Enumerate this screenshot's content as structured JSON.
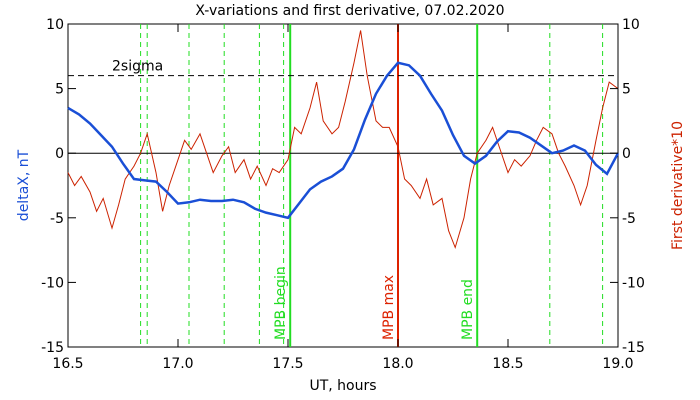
{
  "chart_data": {
    "type": "line",
    "title": "X-variations and first derivative, 07.02.2020",
    "xlabel": "UT, hours",
    "ylabel_left": "deltaX, nT",
    "ylabel_right": "First derivative*10",
    "xlim": [
      16.5,
      19.0
    ],
    "ylim": [
      -15,
      10
    ],
    "x_ticks": [
      16.5,
      17.0,
      17.5,
      18.0,
      18.5,
      19.0
    ],
    "x_tick_labels": [
      "16.5",
      "17.0",
      "17.5",
      "18.0",
      "18.5",
      "19.0"
    ],
    "y_ticks": [
      -15,
      -10,
      -5,
      0,
      5,
      10
    ],
    "y_tick_labels": [
      "-15",
      "-10",
      "-5",
      "0",
      "5",
      "10"
    ],
    "colors": {
      "deltax": "#1a4fd6",
      "derivative": "#cc2200",
      "marker_green": "#22dd22",
      "mpb_max": "#dd2200",
      "sigma": "#000000",
      "left_label": "#1a4fd6",
      "right_label": "#cc2200"
    },
    "sigma_line": {
      "y": 6,
      "label": "2sigma"
    },
    "zero_line": {
      "y": 0
    },
    "minor_markers": [
      16.83,
      16.86,
      17.05,
      17.21,
      17.37,
      17.48,
      18.69,
      18.93
    ],
    "markers": [
      {
        "x": 17.51,
        "label": "MPB begin",
        "kind": "green"
      },
      {
        "x": 18.0,
        "label": "MPB max",
        "kind": "red"
      },
      {
        "x": 18.36,
        "label": "MPB end",
        "kind": "green"
      }
    ],
    "series": [
      {
        "key": "deltax",
        "x": [
          16.5,
          16.55,
          16.6,
          16.65,
          16.7,
          16.75,
          16.8,
          16.85,
          16.9,
          16.95,
          17.0,
          17.05,
          17.1,
          17.15,
          17.2,
          17.25,
          17.3,
          17.35,
          17.4,
          17.45,
          17.5,
          17.55,
          17.6,
          17.65,
          17.7,
          17.75,
          17.8,
          17.85,
          17.9,
          17.95,
          18.0,
          18.05,
          18.1,
          18.15,
          18.2,
          18.25,
          18.3,
          18.35,
          18.4,
          18.45,
          18.5,
          18.55,
          18.6,
          18.65,
          18.7,
          18.75,
          18.8,
          18.85,
          18.9,
          18.95,
          19.0
        ],
        "values": [
          3.5,
          3.0,
          2.3,
          1.4,
          0.5,
          -0.8,
          -2.0,
          -2.1,
          -2.2,
          -3.0,
          -3.9,
          -3.8,
          -3.6,
          -3.7,
          -3.7,
          -3.6,
          -3.8,
          -4.3,
          -4.6,
          -4.8,
          -5.0,
          -3.9,
          -2.8,
          -2.2,
          -1.8,
          -1.2,
          0.3,
          2.6,
          4.6,
          6.0,
          7.0,
          6.8,
          6.0,
          4.6,
          3.3,
          1.4,
          -0.2,
          -0.8,
          -0.2,
          0.9,
          1.7,
          1.6,
          1.2,
          0.6,
          0.0,
          0.2,
          0.6,
          0.2,
          -0.9,
          -1.6,
          0.0
        ]
      },
      {
        "key": "derivative",
        "x": [
          16.5,
          16.53,
          16.56,
          16.6,
          16.63,
          16.66,
          16.7,
          16.73,
          16.76,
          16.8,
          16.83,
          16.86,
          16.9,
          16.93,
          16.96,
          17.0,
          17.03,
          17.06,
          17.1,
          17.13,
          17.16,
          17.2,
          17.23,
          17.26,
          17.3,
          17.33,
          17.36,
          17.4,
          17.43,
          17.46,
          17.5,
          17.53,
          17.56,
          17.6,
          17.63,
          17.66,
          17.7,
          17.73,
          17.76,
          17.8,
          17.83,
          17.86,
          17.9,
          17.93,
          17.96,
          18.0,
          18.03,
          18.06,
          18.1,
          18.13,
          18.16,
          18.2,
          18.23,
          18.26,
          18.3,
          18.33,
          18.36,
          18.4,
          18.43,
          18.46,
          18.5,
          18.53,
          18.56,
          18.6,
          18.63,
          18.66,
          18.7,
          18.73,
          18.76,
          18.8,
          18.83,
          18.86,
          18.9,
          18.93,
          18.96,
          19.0
        ],
        "values": [
          -1.5,
          -2.5,
          -1.8,
          -3.0,
          -4.5,
          -3.5,
          -5.8,
          -4.0,
          -2.0,
          -1.0,
          0.0,
          1.5,
          -1.5,
          -4.5,
          -2.5,
          -0.5,
          1.0,
          0.3,
          1.5,
          0.0,
          -1.5,
          -0.2,
          0.5,
          -1.5,
          -0.5,
          -2.0,
          -1.0,
          -2.5,
          -1.2,
          -1.5,
          -0.5,
          2.0,
          1.5,
          3.5,
          5.5,
          2.5,
          1.5,
          2.0,
          4.0,
          7.0,
          9.5,
          6.0,
          2.5,
          2.0,
          2.0,
          0.5,
          -2.0,
          -2.5,
          -3.5,
          -2.0,
          -4.0,
          -3.5,
          -6.0,
          -7.3,
          -5.0,
          -2.0,
          0.0,
          1.0,
          2.0,
          0.5,
          -1.5,
          -0.5,
          -1.0,
          -0.2,
          1.0,
          2.0,
          1.5,
          0.0,
          -1.0,
          -2.5,
          -4.0,
          -2.5,
          1.0,
          3.5,
          5.5,
          5.0
        ]
      }
    ]
  }
}
